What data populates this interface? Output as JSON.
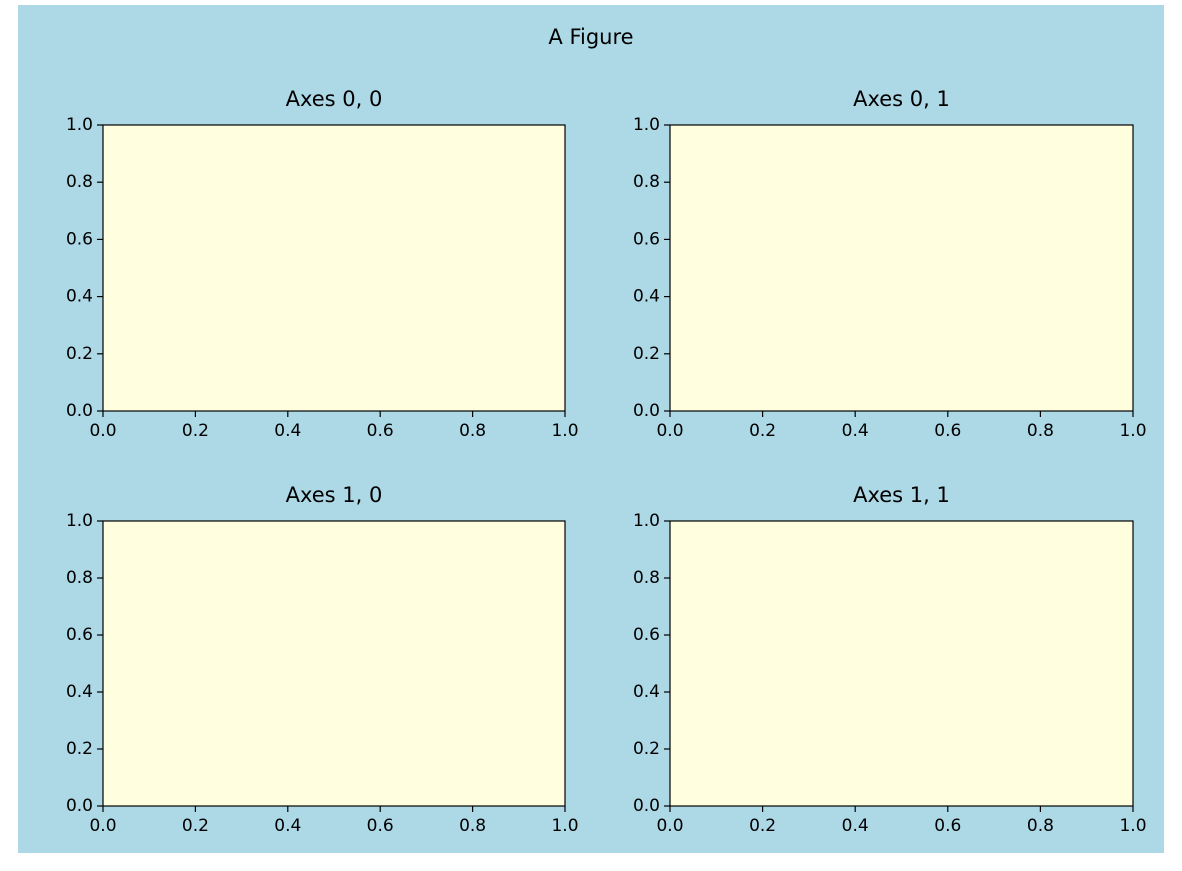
{
  "title": "A Figure",
  "facecolor": "#add8e6",
  "chart_data": [
    {
      "type": "line",
      "title": "Axes 0, 0",
      "facecolor": "#ffffe0",
      "xlim": [
        0,
        1
      ],
      "ylim": [
        0,
        1
      ],
      "xticks": [
        {
          "value": 0,
          "label": "0.0"
        },
        0.2,
        0.4,
        0.6,
        0.8,
        {
          "value": 1,
          "label": "1.0"
        }
      ],
      "yticks": [
        {
          "value": 0,
          "label": "0.0"
        },
        0.2,
        0.4,
        0.6,
        0.8,
        {
          "value": 1,
          "label": "1.0"
        }
      ]
    },
    {
      "type": "line",
      "title": "Axes 0, 1",
      "facecolor": "#ffffe0",
      "xlim": [
        0,
        1
      ],
      "ylim": [
        0,
        1
      ],
      "xticks": [
        {
          "value": 0,
          "label": "0.0"
        },
        0.2,
        0.4,
        0.6,
        0.8,
        {
          "value": 1,
          "label": "1.0"
        }
      ],
      "yticks": [
        {
          "value": 0,
          "label": "0.0"
        },
        0.2,
        0.4,
        0.6,
        0.8,
        {
          "value": 1,
          "label": "1.0"
        }
      ]
    },
    {
      "type": "line",
      "title": "Axes 1, 0",
      "facecolor": "#ffffe0",
      "xlim": [
        0,
        1
      ],
      "ylim": [
        0,
        1
      ],
      "xticks": [
        {
          "value": 0,
          "label": "0.0"
        },
        0.2,
        0.4,
        0.6,
        0.8,
        {
          "value": 1,
          "label": "1.0"
        }
      ],
      "yticks": [
        {
          "value": 0,
          "label": "0.0"
        },
        0.2,
        0.4,
        0.6,
        0.8,
        {
          "value": 1,
          "label": "1.0"
        }
      ]
    },
    {
      "type": "line",
      "title": "Axes 1, 1",
      "facecolor": "#ffffe0",
      "xlim": [
        0,
        1
      ],
      "ylim": [
        0,
        1
      ],
      "xticks": [
        {
          "value": 0,
          "label": "0.0"
        },
        0.2,
        0.4,
        0.6,
        0.8,
        {
          "value": 1,
          "label": "1.0"
        }
      ],
      "yticks": [
        {
          "value": 0,
          "label": "0.0"
        },
        0.2,
        0.4,
        0.6,
        0.8,
        {
          "value": 1,
          "label": "1.0"
        }
      ]
    }
  ]
}
